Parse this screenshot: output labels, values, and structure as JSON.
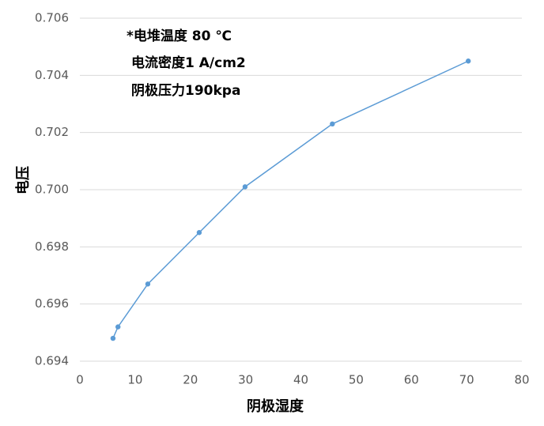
{
  "chart_data": {
    "type": "line",
    "annotations": [
      "*电堆温度 80 ℃",
      "电流密度1 A/cm2",
      "阴极压力190kpa"
    ],
    "x_label": "阴极湿度",
    "y_label": "电压",
    "x": [
      6,
      6.9,
      12.3,
      21.6,
      29.9,
      45.7,
      70.3
    ],
    "series": [
      {
        "color": "#5b9bd5",
        "values": [
          0.6948,
          0.6952,
          0.6967,
          0.6985,
          0.7001,
          0.7023,
          0.7045
        ]
      }
    ],
    "xlim": [
      0,
      80
    ],
    "xticks": [
      0,
      10,
      20,
      30,
      40,
      50,
      60,
      70,
      80
    ],
    "ylim": [
      0.694,
      0.706
    ],
    "yticks": [
      0.694,
      0.696,
      0.698,
      {
        "value": 0.7,
        "label": "0.700"
      },
      0.702,
      0.704,
      0.706
    ],
    "grid": true
  }
}
